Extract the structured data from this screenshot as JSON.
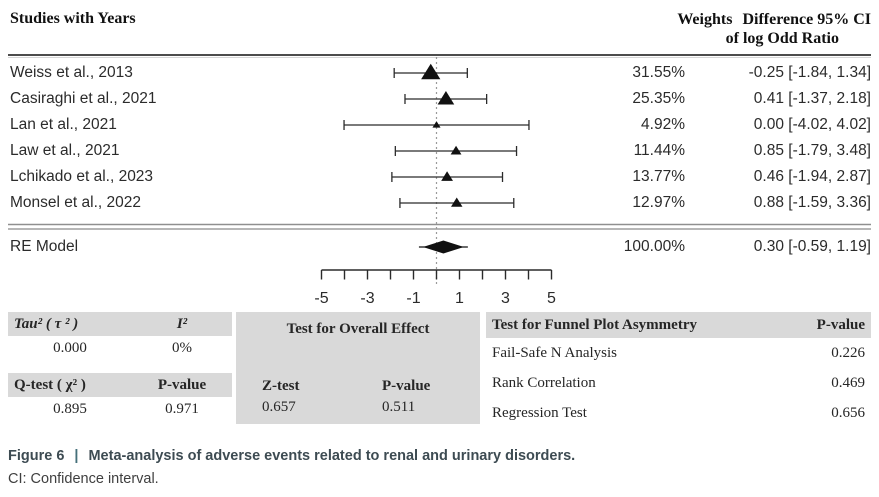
{
  "header": {
    "left_title": "Studies with Years",
    "col_weights": "Weights",
    "col_diff_line1": "Difference 95% CI",
    "col_diff_line2": "of log Odd Ratio"
  },
  "chart_data": {
    "type": "forest",
    "effect_measure": "Difference of log Odd Ratio",
    "x_axis": {
      "range": [
        -5,
        5
      ],
      "major_tick_labels": [
        -5,
        -3,
        -1,
        1,
        3,
        5
      ],
      "minor_tick_step": 1,
      "reference_line": 0
    },
    "studies": [
      {
        "name": "Weiss et al., 2013",
        "weight_pct": 31.55,
        "weight_label": "31.55%",
        "estimate": -0.25,
        "ci_low": -1.84,
        "ci_high": 1.34,
        "ci_label": "-0.25 [-1.84, 1.34]"
      },
      {
        "name": "Casiraghi et al., 2021",
        "weight_pct": 25.35,
        "weight_label": "25.35%",
        "estimate": 0.41,
        "ci_low": -1.37,
        "ci_high": 2.18,
        "ci_label": "0.41 [-1.37, 2.18]"
      },
      {
        "name": "Lan et al., 2021",
        "weight_pct": 4.92,
        "weight_label": "4.92%",
        "estimate": 0.0,
        "ci_low": -4.02,
        "ci_high": 4.02,
        "ci_label": "0.00 [-4.02, 4.02]"
      },
      {
        "name": "Law et al., 2021",
        "weight_pct": 11.44,
        "weight_label": "11.44%",
        "estimate": 0.85,
        "ci_low": -1.79,
        "ci_high": 3.48,
        "ci_label": "0.85 [-1.79, 3.48]"
      },
      {
        "name": "Lchikado et al., 2023",
        "weight_pct": 13.77,
        "weight_label": "13.77%",
        "estimate": 0.46,
        "ci_low": -1.94,
        "ci_high": 2.87,
        "ci_label": "0.46 [-1.94, 2.87]"
      },
      {
        "name": "Monsel et al., 2022",
        "weight_pct": 12.97,
        "weight_label": "12.97%",
        "estimate": 0.88,
        "ci_low": -1.59,
        "ci_high": 3.36,
        "ci_label": "0.88 [-1.59, 3.36]"
      }
    ],
    "summary": {
      "name": "RE Model",
      "weight_pct": 100.0,
      "weight_label": "100.00%",
      "estimate": 0.3,
      "ci_low": -0.59,
      "ci_high": 1.19,
      "ci_label": "0.30 [-0.59, 1.19]"
    }
  },
  "stats": {
    "heterogeneity": {
      "tau_label": "Tau² ( τ ² )",
      "i2_label": "I²",
      "tau_value": "0.000",
      "i2_value": "0%",
      "q_label": "Q-test ( χ² )",
      "q_p_label": "P-value",
      "q_value": "0.895",
      "q_p_value": "0.971"
    },
    "overall_effect": {
      "title": "Test for Overall Effect",
      "z_label": "Z-test",
      "p_label": "P-value",
      "z_value": "0.657",
      "p_value": "0.511"
    },
    "funnel": {
      "title": "Test for Funnel Plot Asymmetry",
      "p_header": "P-value",
      "rows": [
        {
          "label": "Fail-Safe N Analysis",
          "value": "0.226"
        },
        {
          "label": "Rank Correlation",
          "value": "0.469"
        },
        {
          "label": "Regression Test",
          "value": "0.656"
        }
      ]
    }
  },
  "caption": {
    "figure_label": "Figure 6",
    "separator": "|",
    "title": "Meta-analysis of adverse events related to renal and urinary disorders.",
    "note": "CI: Confidence interval."
  },
  "colors": {
    "table_header_bg": "#d9d9d9",
    "caption_color": "#3d4b52",
    "text_color": "#262626",
    "line_color": "#2b2b2b",
    "marker_color": "#111111",
    "reference_line_color": "#9a9a9a"
  }
}
